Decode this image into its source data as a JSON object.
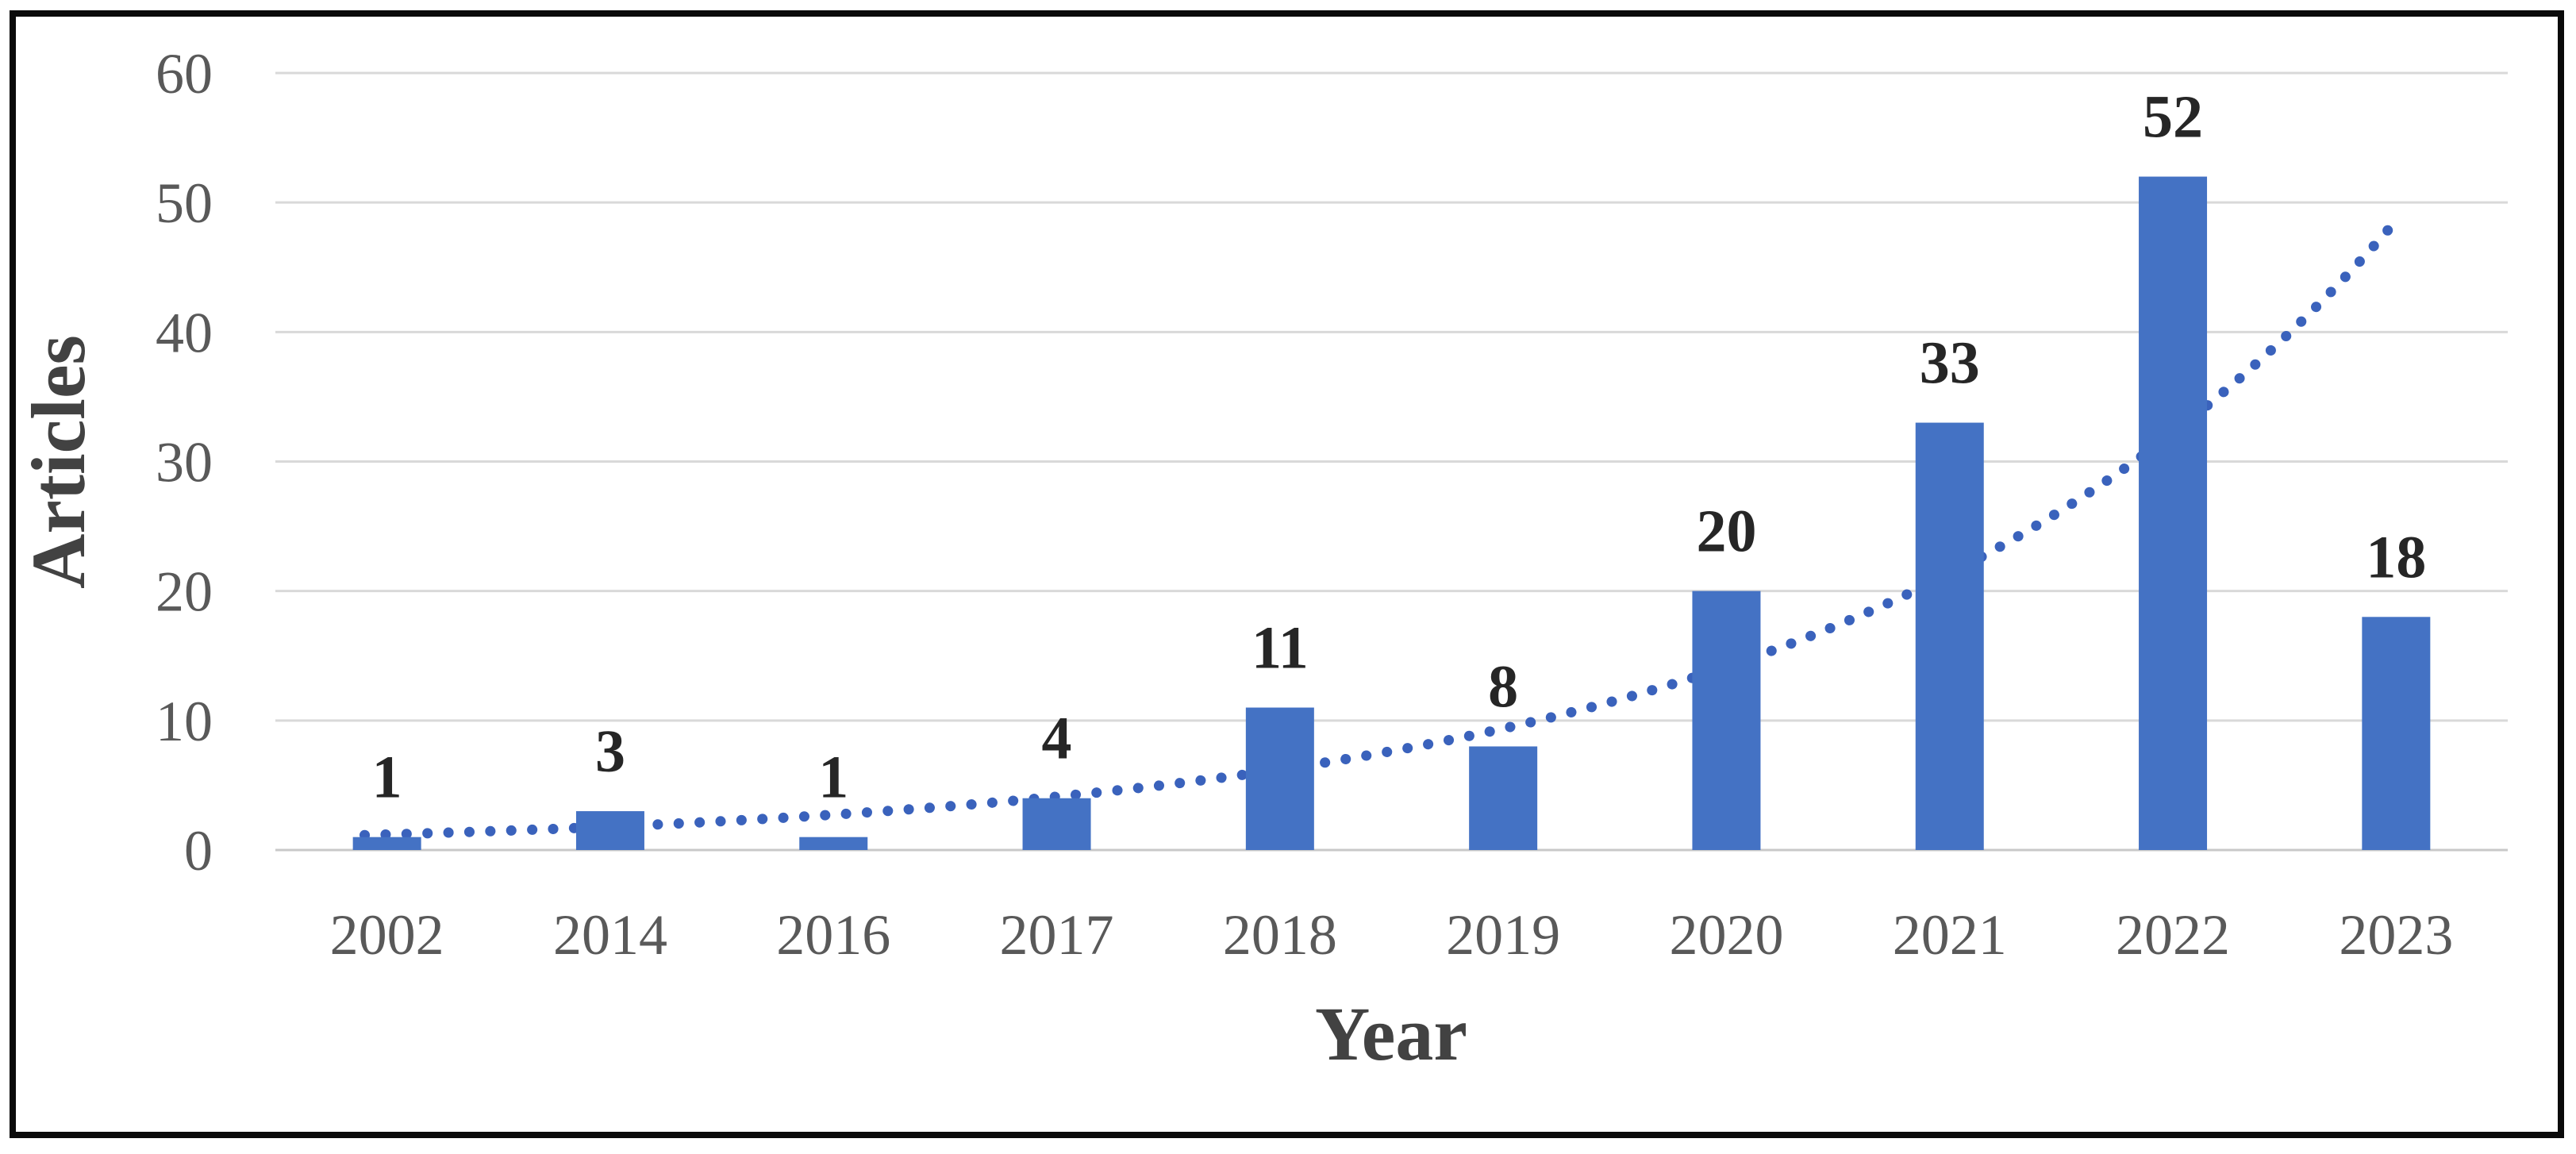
{
  "chart_data": {
    "type": "bar",
    "title": "",
    "categories": [
      "2002",
      "2014",
      "2016",
      "2017",
      "2018",
      "2019",
      "2020",
      "2021",
      "2022",
      "2023"
    ],
    "values": [
      1,
      3,
      1,
      4,
      11,
      8,
      20,
      33,
      52,
      18
    ],
    "data_labels": [
      "1",
      "3",
      "1",
      "4",
      "11",
      "8",
      "20",
      "33",
      "52",
      "18"
    ],
    "xlabel": "Year",
    "ylabel": "Articles",
    "ylim": [
      0,
      60
    ],
    "yticks": [
      0,
      10,
      20,
      30,
      40,
      50,
      60
    ],
    "grid": true,
    "legend": "none",
    "colors": {
      "bar": "#4472C4",
      "trendline": "#3A62BC",
      "gridline": "#D9D9D9",
      "baseline": "#C8C8C8",
      "tick_text": "#595959",
      "data_label_text": "#262626",
      "axis_title_text": "#424242",
      "frame_border": "#0A0A0A",
      "background": "#FFFFFF"
    },
    "trendline": {
      "shape": "exponential",
      "style": "dotted",
      "start_value": 1.2,
      "end_value": 48.6,
      "start_category_index": 0,
      "end_category_index": 9
    }
  }
}
